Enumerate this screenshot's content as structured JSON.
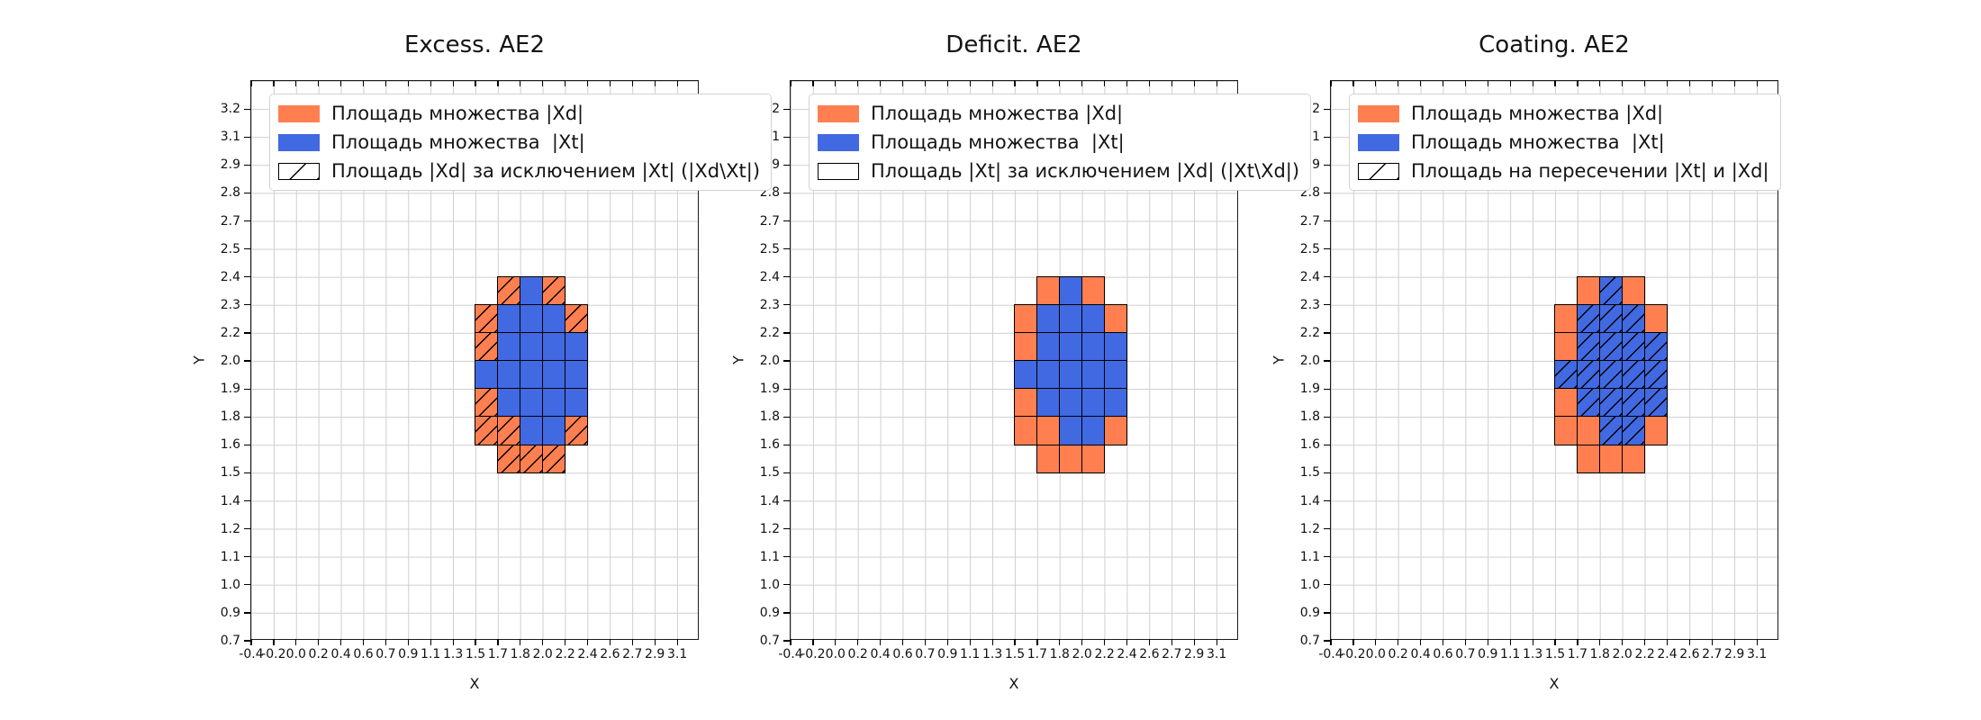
{
  "colors": {
    "orange": "#FF7F50",
    "blue": "#4169E1",
    "gridline": "#cfcfcf",
    "cell_edge": "#000000"
  },
  "axes": {
    "x_label": "X",
    "y_label": "Y",
    "x_ticks": [
      "-0.4",
      "-0.2",
      "0.0",
      "0.2",
      "0.4",
      "0.6",
      "0.7",
      "0.9",
      "1.1",
      "1.3",
      "1.5",
      "1.7",
      "1.8",
      "2.0",
      "2.2",
      "2.4",
      "2.6",
      "2.7",
      "2.9",
      "3.1"
    ],
    "y_ticks": [
      "3.2",
      "3.1",
      "2.9",
      "2.8",
      "2.7",
      "2.5",
      "2.4",
      "2.3",
      "2.2",
      "2.0",
      "1.9",
      "1.8",
      "1.6",
      "1.5",
      "1.4",
      "1.2",
      "1.1",
      "1.0",
      "0.9",
      "0.7"
    ]
  },
  "blob": {
    "col_start": 10,
    "row_start": 7,
    "x_range": [
      1.5,
      2.4
    ],
    "y_range": [
      1.5,
      2.4
    ],
    "legend_key": {
      "O": "orange = set |Xd|",
      "B": "blue = set |Xt|"
    },
    "pattern": [
      [
        "",
        "O",
        "B",
        "O",
        ""
      ],
      [
        "O",
        "B",
        "B",
        "B",
        "O"
      ],
      [
        "O",
        "B",
        "B",
        "B",
        "B"
      ],
      [
        "B",
        "B",
        "B",
        "B",
        "B"
      ],
      [
        "O",
        "B",
        "B",
        "B",
        "B"
      ],
      [
        "O",
        "O",
        "B",
        "B",
        "O"
      ],
      [
        "",
        "O",
        "O",
        "O",
        ""
      ]
    ]
  },
  "chart_data": [
    {
      "type": "heatmap",
      "title": "Excess. AE2",
      "xlabel": "X",
      "ylabel": "Y",
      "hatch_on": "O",
      "legend": [
        {
          "swatch": "orange",
          "label": "Площадь множества |Xd|"
        },
        {
          "swatch": "blue",
          "label": "Площадь множества  |Xt|"
        },
        {
          "swatch": "hatch",
          "label": "Площадь |Xd| за исключением |Xt| (|Xd\\Xt|)"
        }
      ]
    },
    {
      "type": "heatmap",
      "title": "Deficit. AE2",
      "xlabel": "X",
      "ylabel": "Y",
      "hatch_on": "",
      "legend": [
        {
          "swatch": "orange",
          "label": "Площадь множества |Xd|"
        },
        {
          "swatch": "blue",
          "label": "Площадь множества  |Xt|"
        },
        {
          "swatch": "empty",
          "label": "Площадь |Xt| за исключением |Xd| (|Xt\\Xd|)"
        }
      ]
    },
    {
      "type": "heatmap",
      "title": "Coating. AE2",
      "xlabel": "X",
      "ylabel": "Y",
      "hatch_on": "B",
      "legend": [
        {
          "swatch": "orange",
          "label": "Площадь множества |Xd|"
        },
        {
          "swatch": "blue",
          "label": "Площадь множества  |Xt|"
        },
        {
          "swatch": "hatch",
          "label": "Площадь на пересечении |Xt| и |Xd|"
        }
      ]
    }
  ]
}
